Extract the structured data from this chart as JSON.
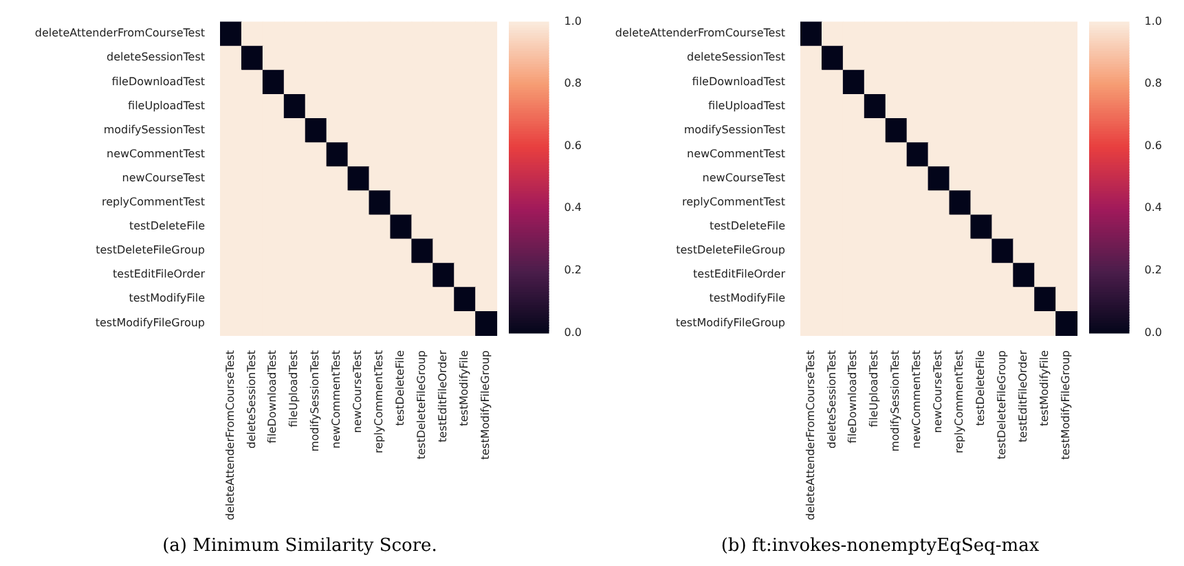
{
  "chart_data": [
    {
      "type": "heatmap",
      "annotations": [
        "(a) Minimum Similarity Score."
      ],
      "categories": [
        "deleteAttenderFromCourseTest",
        "deleteSessionTest",
        "fileDownloadTest",
        "fileUploadTest",
        "modifySessionTest",
        "newCommentTest",
        "newCourseTest",
        "replyCommentTest",
        "testDeleteFile",
        "testDeleteFileGroup",
        "testEditFileOrder",
        "testModifyFile",
        "testModifyFileGroup"
      ],
      "y_categories": [
        "deleteAttenderFromCourseTest",
        "deleteSessionTest",
        "fileDownloadTest",
        "fileUploadTest",
        "modifySessionTest",
        "newCommentTest",
        "newCourseTest",
        "replyCommentTest",
        "testDeleteFile",
        "testDeleteFileGroup",
        "testEditFileOrder",
        "testModifyFile",
        "testModifyFileGroup"
      ],
      "cells": [
        [
          0,
          1,
          1,
          1,
          1,
          1,
          1,
          1,
          1,
          1,
          1,
          1,
          1
        ],
        [
          1,
          0,
          1,
          1,
          1,
          1,
          1,
          1,
          1,
          1,
          1,
          1,
          1
        ],
        [
          1,
          1,
          0,
          1,
          1,
          1,
          1,
          1,
          1,
          1,
          1,
          1,
          1
        ],
        [
          1,
          1,
          1,
          0,
          1,
          1,
          1,
          1,
          1,
          1,
          1,
          1,
          1
        ],
        [
          1,
          1,
          1,
          1,
          0,
          1,
          1,
          1,
          1,
          1,
          1,
          1,
          1
        ],
        [
          1,
          1,
          1,
          1,
          1,
          0,
          1,
          1,
          1,
          1,
          1,
          1,
          1
        ],
        [
          1,
          1,
          1,
          1,
          1,
          1,
          0,
          1,
          1,
          1,
          1,
          1,
          1
        ],
        [
          1,
          1,
          1,
          1,
          1,
          1,
          1,
          0,
          1,
          1,
          1,
          1,
          1
        ],
        [
          1,
          1,
          1,
          1,
          1,
          1,
          1,
          1,
          0,
          1,
          1,
          1,
          1
        ],
        [
          1,
          1,
          1,
          1,
          1,
          1,
          1,
          1,
          1,
          0,
          1,
          1,
          1
        ],
        [
          1,
          1,
          1,
          1,
          1,
          1,
          1,
          1,
          1,
          1,
          0,
          1,
          1
        ],
        [
          1,
          1,
          1,
          1,
          1,
          1,
          1,
          1,
          1,
          1,
          1,
          0,
          1
        ],
        [
          1,
          1,
          1,
          1,
          1,
          1,
          1,
          1,
          1,
          1,
          1,
          1,
          0
        ]
      ],
      "clim": [
        0,
        1
      ],
      "cticks": [
        {
          "value": 0,
          "label": "0.0"
        },
        {
          "value": 0.2,
          "label": "0.2"
        },
        {
          "value": 0.4,
          "label": "0.4"
        },
        {
          "value": 0.6,
          "label": "0.6"
        },
        {
          "value": 0.8,
          "label": "0.8"
        },
        {
          "value": 1,
          "label": "1.0"
        }
      ]
    },
    {
      "type": "heatmap",
      "annotations": [
        "(b) ft:invokes-nonemptyEqSeq-max"
      ],
      "categories": [
        "deleteAttenderFromCourseTest",
        "deleteSessionTest",
        "fileDownloadTest",
        "fileUploadTest",
        "modifySessionTest",
        "newCommentTest",
        "newCourseTest",
        "replyCommentTest",
        "testDeleteFile",
        "testDeleteFileGroup",
        "testEditFileOrder",
        "testModifyFile",
        "testModifyFileGroup"
      ],
      "y_categories": [
        "deleteAttenderFromCourseTest",
        "deleteSessionTest",
        "fileDownloadTest",
        "fileUploadTest",
        "modifySessionTest",
        "newCommentTest",
        "newCourseTest",
        "replyCommentTest",
        "testDeleteFile",
        "testDeleteFileGroup",
        "testEditFileOrder",
        "testModifyFile",
        "testModifyFileGroup"
      ],
      "cells": [
        [
          0,
          1,
          1,
          1,
          1,
          1,
          1,
          1,
          1,
          1,
          1,
          1,
          1
        ],
        [
          1,
          0,
          1,
          1,
          1,
          1,
          1,
          1,
          1,
          1,
          1,
          1,
          1
        ],
        [
          1,
          1,
          0,
          1,
          1,
          1,
          1,
          1,
          1,
          1,
          1,
          1,
          1
        ],
        [
          1,
          1,
          1,
          0,
          1,
          1,
          1,
          1,
          1,
          1,
          1,
          1,
          1
        ],
        [
          1,
          1,
          1,
          1,
          0,
          1,
          1,
          1,
          1,
          1,
          1,
          1,
          1
        ],
        [
          1,
          1,
          1,
          1,
          1,
          0,
          1,
          1,
          1,
          1,
          1,
          1,
          1
        ],
        [
          1,
          1,
          1,
          1,
          1,
          1,
          0,
          1,
          1,
          1,
          1,
          1,
          1
        ],
        [
          1,
          1,
          1,
          1,
          1,
          1,
          1,
          0,
          1,
          1,
          1,
          1,
          1
        ],
        [
          1,
          1,
          1,
          1,
          1,
          1,
          1,
          1,
          0,
          1,
          1,
          1,
          1
        ],
        [
          1,
          1,
          1,
          1,
          1,
          1,
          1,
          1,
          1,
          0,
          1,
          1,
          1
        ],
        [
          1,
          1,
          1,
          1,
          1,
          1,
          1,
          1,
          1,
          1,
          0,
          1,
          1
        ],
        [
          1,
          1,
          1,
          1,
          1,
          1,
          1,
          1,
          1,
          1,
          1,
          0,
          1
        ],
        [
          1,
          1,
          1,
          1,
          1,
          1,
          1,
          1,
          1,
          1,
          1,
          1,
          0
        ]
      ],
      "clim": [
        0,
        1
      ],
      "cticks": [
        {
          "value": 0,
          "label": "0.0"
        },
        {
          "value": 0.2,
          "label": "0.2"
        },
        {
          "value": 0.4,
          "label": "0.4"
        },
        {
          "value": 0.6,
          "label": "0.6"
        },
        {
          "value": 0.8,
          "label": "0.8"
        },
        {
          "value": 1,
          "label": "1.0"
        }
      ]
    }
  ]
}
